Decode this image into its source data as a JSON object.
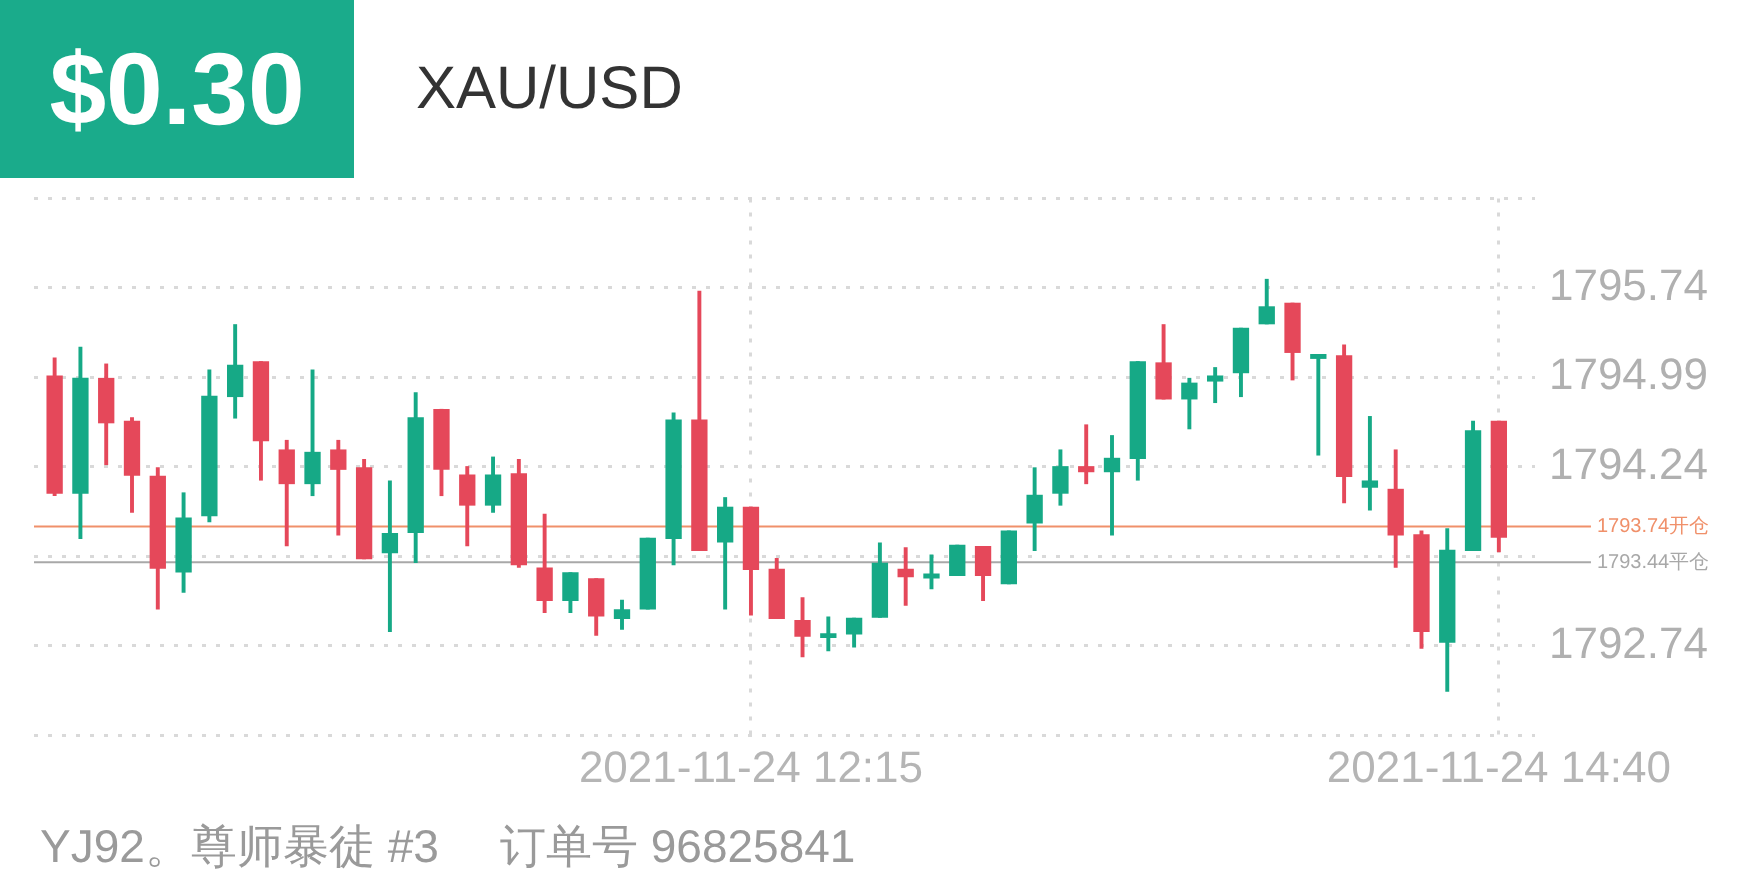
{
  "chart_data": {
    "type": "candlestick",
    "title": "XAU/USD",
    "annotations": [
      "$0.30",
      "YJ92。尊师暴徒 #3",
      "订单号 96825841"
    ],
    "x": [
      "2021-11-24T10:00",
      "2021-11-24T10:05",
      "2021-11-24T10:10",
      "2021-11-24T10:15",
      "2021-11-24T10:20",
      "2021-11-24T10:25",
      "2021-11-24T10:30",
      "2021-11-24T10:35",
      "2021-11-24T10:40",
      "2021-11-24T10:45",
      "2021-11-24T10:50",
      "2021-11-24T10:55",
      "2021-11-24T11:00",
      "2021-11-24T11:05",
      "2021-11-24T11:10",
      "2021-11-24T11:15",
      "2021-11-24T11:20",
      "2021-11-24T11:25",
      "2021-11-24T11:30",
      "2021-11-24T11:35",
      "2021-11-24T11:40",
      "2021-11-24T11:45",
      "2021-11-24T11:50",
      "2021-11-24T11:55",
      "2021-11-24T12:00",
      "2021-11-24T12:05",
      "2021-11-24T12:10",
      "2021-11-24T12:15",
      "2021-11-24T12:20",
      "2021-11-24T12:25",
      "2021-11-24T12:30",
      "2021-11-24T12:35",
      "2021-11-24T12:40",
      "2021-11-24T12:45",
      "2021-11-24T12:50",
      "2021-11-24T12:55",
      "2021-11-24T13:00",
      "2021-11-24T13:05",
      "2021-11-24T13:10",
      "2021-11-24T13:15",
      "2021-11-24T13:20",
      "2021-11-24T13:25",
      "2021-11-24T13:30",
      "2021-11-24T13:35",
      "2021-11-24T13:40",
      "2021-11-24T13:45",
      "2021-11-24T13:50",
      "2021-11-24T13:55",
      "2021-11-24T14:00",
      "2021-11-24T14:05",
      "2021-11-24T14:10",
      "2021-11-24T14:15",
      "2021-11-24T14:20",
      "2021-11-24T14:25",
      "2021-11-24T14:30",
      "2021-11-24T14:35",
      "2021-11-24T14:40"
    ],
    "ohlc": [
      [
        1795.0,
        1795.15,
        1794.0,
        1794.02
      ],
      [
        1794.02,
        1795.24,
        1793.64,
        1794.98
      ],
      [
        1794.98,
        1795.1,
        1794.26,
        1794.61
      ],
      [
        1794.62,
        1794.65,
        1793.86,
        1794.17
      ],
      [
        1794.16,
        1794.23,
        1793.05,
        1793.39
      ],
      [
        1793.36,
        1794.02,
        1793.19,
        1793.81
      ],
      [
        1793.83,
        1795.05,
        1793.78,
        1794.83
      ],
      [
        1794.83,
        1795.43,
        1794.65,
        1795.09
      ],
      [
        1795.12,
        1795.12,
        1794.13,
        1794.46
      ],
      [
        1794.38,
        1794.46,
        1793.58,
        1794.1
      ],
      [
        1794.1,
        1795.05,
        1794.0,
        1794.36
      ],
      [
        1794.38,
        1794.46,
        1793.67,
        1794.22
      ],
      [
        1794.23,
        1794.3,
        1793.47,
        1793.47
      ],
      [
        1793.52,
        1794.12,
        1792.86,
        1793.68
      ],
      [
        1793.69,
        1794.86,
        1793.44,
        1794.65
      ],
      [
        1794.72,
        1794.72,
        1794.0,
        1794.22
      ],
      [
        1794.17,
        1794.24,
        1793.58,
        1793.92
      ],
      [
        1793.92,
        1794.32,
        1793.86,
        1794.17
      ],
      [
        1794.18,
        1794.3,
        1793.4,
        1793.42
      ],
      [
        1793.39,
        1793.84,
        1793.02,
        1793.12
      ],
      [
        1793.12,
        1793.35,
        1793.02,
        1793.35
      ],
      [
        1793.3,
        1793.3,
        1792.83,
        1792.99
      ],
      [
        1792.97,
        1793.12,
        1792.88,
        1793.04
      ],
      [
        1793.05,
        1793.64,
        1793.05,
        1793.64
      ],
      [
        1793.64,
        1794.69,
        1793.42,
        1794.63
      ],
      [
        1794.63,
        1795.71,
        1793.54,
        1793.54
      ],
      [
        1793.61,
        1793.98,
        1793.05,
        1793.9
      ],
      [
        1793.9,
        1793.9,
        1793.0,
        1793.38
      ],
      [
        1793.38,
        1793.47,
        1792.97,
        1792.97
      ],
      [
        1792.95,
        1793.14,
        1792.65,
        1792.82
      ],
      [
        1792.81,
        1792.98,
        1792.7,
        1792.84
      ],
      [
        1792.84,
        1792.97,
        1792.73,
        1792.97
      ],
      [
        1792.98,
        1793.6,
        1792.98,
        1793.43
      ],
      [
        1793.38,
        1793.56,
        1793.08,
        1793.32
      ],
      [
        1793.31,
        1793.5,
        1793.22,
        1793.34
      ],
      [
        1793.33,
        1793.58,
        1793.33,
        1793.58
      ],
      [
        1793.57,
        1793.57,
        1793.12,
        1793.33
      ],
      [
        1793.26,
        1793.7,
        1793.26,
        1793.7
      ],
      [
        1793.77,
        1794.23,
        1793.54,
        1794.0
      ],
      [
        1794.02,
        1794.38,
        1793.92,
        1794.24
      ],
      [
        1794.24,
        1794.59,
        1794.1,
        1794.2
      ],
      [
        1794.2,
        1794.5,
        1793.67,
        1794.31
      ],
      [
        1794.31,
        1795.12,
        1794.13,
        1795.12
      ],
      [
        1795.11,
        1795.43,
        1794.81,
        1794.81
      ],
      [
        1794.81,
        1794.98,
        1794.56,
        1794.94
      ],
      [
        1794.96,
        1795.07,
        1794.78,
        1795.0
      ],
      [
        1795.03,
        1795.4,
        1794.83,
        1795.4
      ],
      [
        1795.44,
        1795.81,
        1795.44,
        1795.58
      ],
      [
        1795.61,
        1795.61,
        1794.97,
        1795.2
      ],
      [
        1795.15,
        1795.18,
        1794.34,
        1795.18
      ],
      [
        1795.17,
        1795.26,
        1793.94,
        1794.16
      ],
      [
        1794.07,
        1794.66,
        1793.88,
        1794.12
      ],
      [
        1794.05,
        1794.38,
        1793.4,
        1793.67
      ],
      [
        1793.67,
        1793.7,
        1792.72,
        1792.86
      ],
      [
        1792.77,
        1793.72,
        1792.36,
        1793.54
      ],
      [
        1793.54,
        1794.62,
        1793.54,
        1794.54
      ],
      [
        1794.62,
        1794.62,
        1793.53,
        1793.65
      ]
    ],
    "colors": [
      "#e5485a",
      "#16a986",
      "#e5485a",
      "#e5485a",
      "#e5485a",
      "#16a986",
      "#16a986",
      "#16a986",
      "#e5485a",
      "#e5485a",
      "#16a986",
      "#e5485a",
      "#e5485a",
      "#16a986",
      "#16a986",
      "#e5485a",
      "#e5485a",
      "#16a986",
      "#e5485a",
      "#e5485a",
      "#16a986",
      "#e5485a",
      "#16a986",
      "#16a986",
      "#16a986",
      "#e5485a",
      "#16a986",
      "#e5485a",
      "#e5485a",
      "#e5485a",
      "#16a986",
      "#16a986",
      "#16a986",
      "#e5485a",
      "#16a986",
      "#16a986",
      "#e5485a",
      "#16a986",
      "#16a986",
      "#16a986",
      "#e5485a",
      "#16a986",
      "#16a986",
      "#e5485a",
      "#16a986",
      "#16a986",
      "#16a986",
      "#16a986",
      "#e5485a",
      "#16a986",
      "#e5485a",
      "#16a986",
      "#e5485a",
      "#e5485a",
      "#16a986",
      "#16a986",
      "#e5485a"
    ],
    "xlim": [
      "2021-11-24T09:56",
      "2021-11-24T14:47"
    ],
    "xticks": [
      {
        "value": "2021-11-24T12:15",
        "label": "2021-11-24 12:15"
      },
      {
        "value": "2021-11-24T14:40",
        "label": "2021-11-24 14:40"
      }
    ],
    "ylim": [
      1791.99,
      1796.49
    ],
    "yticks": [
      {
        "value": 1791.99,
        "label": null
      },
      1792.74,
      {
        "value": 1793.49,
        "label": null
      },
      1794.24,
      1794.99,
      1795.74,
      {
        "value": 1796.49,
        "label": null
      }
    ],
    "grid": true,
    "ref_lines": [
      {
        "axis": "y",
        "value": 1793.74,
        "label": "1793.74开仓",
        "color": "#f0906a"
      },
      {
        "axis": "y",
        "value": 1793.44,
        "label": "1793.44平仓",
        "color": "#a8a8a8"
      }
    ]
  }
}
